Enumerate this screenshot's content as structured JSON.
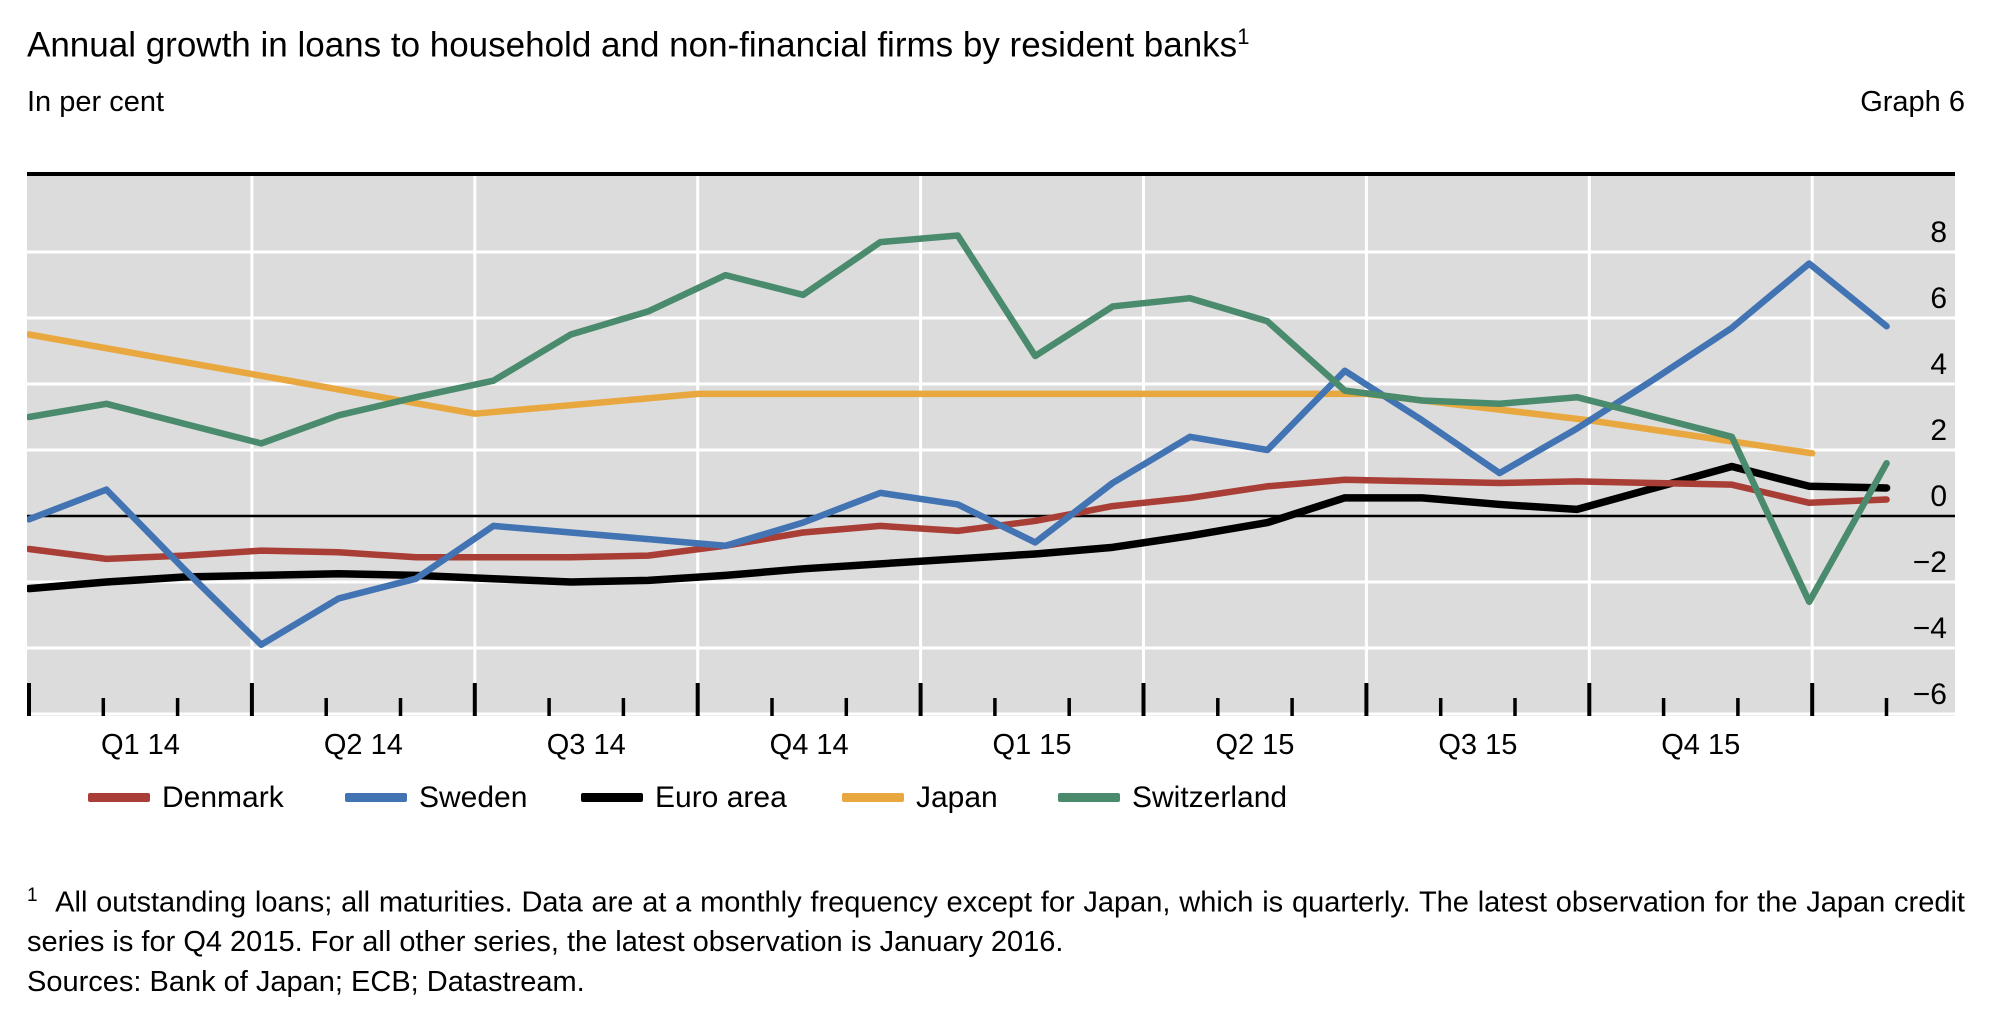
{
  "header": {
    "title": "Annual growth in loans to household and non-financial firms by resident banks",
    "title_footnote_marker": "1",
    "subtitle_left": "In per cent",
    "subtitle_right": "Graph 6"
  },
  "chart_data": {
    "type": "line",
    "title": "Annual growth in loans to household and non-financial firms by resident banks",
    "ylabel": "In per cent",
    "ylim": [
      -6.1,
      10.3
    ],
    "yticks": [
      8,
      6,
      4,
      2,
      0,
      -2,
      -4,
      -6
    ],
    "ytick_labels": [
      "8",
      "6",
      "4",
      "2",
      "0",
      "−2",
      "−4",
      "−6"
    ],
    "zero_line": true,
    "grid": true,
    "legend_position": "bottom",
    "plot_background": "#dcdcdc",
    "gridline_color": "#ffffff",
    "months": [
      "Jan 2014",
      "Feb 2014",
      "Mar 2014",
      "Apr 2014",
      "May 2014",
      "Jun 2014",
      "Jul 2014",
      "Aug 2014",
      "Sep 2014",
      "Oct 2014",
      "Nov 2014",
      "Dec 2014",
      "Jan 2015",
      "Feb 2015",
      "Mar 2015",
      "Apr 2015",
      "May 2015",
      "Jun 2015",
      "Jul 2015",
      "Aug 2015",
      "Sep 2015",
      "Oct 2015",
      "Nov 2015",
      "Dec 2015",
      "Jan 2016"
    ],
    "quarter_tick_labels": [
      "Q1 14",
      "Q2 14",
      "Q3 14",
      "Q4 14",
      "Q1 15",
      "Q2 15",
      "Q3 15",
      "Q4 15"
    ],
    "series": [
      {
        "name": "Euro area",
        "color": "#000000",
        "freq": "monthly",
        "width": 7.5,
        "values": [
          -2.2,
          -2.0,
          -1.85,
          -1.8,
          -1.75,
          -1.8,
          -1.9,
          -2.0,
          -1.95,
          -1.8,
          -1.6,
          -1.45,
          -1.3,
          -1.15,
          -0.95,
          -0.6,
          -0.2,
          0.55,
          0.55,
          0.35,
          0.2,
          0.85,
          1.5,
          0.9,
          0.85
        ]
      },
      {
        "name": "Denmark",
        "color": "#a93e36",
        "freq": "monthly",
        "width": 6.5,
        "values": [
          -1.0,
          -1.3,
          -1.2,
          -1.05,
          -1.1,
          -1.25,
          -1.25,
          -1.25,
          -1.2,
          -0.9,
          -0.5,
          -0.3,
          -0.45,
          -0.15,
          0.3,
          0.55,
          0.9,
          1.1,
          1.05,
          1.0,
          1.05,
          1.0,
          0.95,
          0.4,
          0.5
        ]
      },
      {
        "name": "Japan",
        "color": "#e9a83f",
        "freq": "quarterly",
        "width": 6.5,
        "quarters": [
          "start (Q4 2013 level)",
          "Q1 2014",
          "Q2 2014",
          "Q3 2014",
          "Q4 2014",
          "Q1 2015",
          "Q2 2015",
          "Q3 2015",
          "Q4 2015"
        ],
        "values": [
          5.5,
          4.3,
          3.1,
          3.7,
          3.7,
          3.7,
          3.7,
          2.9,
          1.9
        ]
      },
      {
        "name": "Sweden",
        "color": "#4273b3",
        "freq": "monthly",
        "width": 6.5,
        "values": [
          -0.1,
          0.8,
          -1.6,
          -3.9,
          -2.5,
          -1.9,
          -0.3,
          -0.5,
          -0.7,
          -0.9,
          -0.2,
          0.7,
          0.35,
          -0.8,
          1.0,
          2.4,
          2.0,
          4.4,
          2.9,
          1.3,
          2.65,
          4.15,
          5.7,
          7.65,
          5.75
        ]
      },
      {
        "name": "Switzerland",
        "color": "#4a8a6d",
        "freq": "monthly",
        "width": 6.5,
        "values": [
          3.0,
          3.4,
          2.8,
          2.2,
          3.05,
          3.6,
          4.1,
          5.5,
          6.2,
          7.3,
          6.7,
          8.3,
          8.5,
          4.85,
          6.35,
          6.6,
          5.9,
          3.8,
          3.5,
          3.4,
          3.6,
          3.0,
          2.4,
          -2.6,
          1.6
        ]
      }
    ]
  },
  "legend": [
    {
      "label": "Denmark",
      "color": "#a93e36"
    },
    {
      "label": "Sweden",
      "color": "#4273b3"
    },
    {
      "label": "Euro area",
      "color": "#000000"
    },
    {
      "label": "Japan",
      "color": "#e9a83f"
    },
    {
      "label": "Switzerland",
      "color": "#4a8a6d"
    }
  ],
  "footnote": {
    "marker": "1",
    "text": "All outstanding loans; all maturities. Data are at a monthly frequency except for Japan, which is quarterly. The latest observation for the Japan credit series is for Q4 2015. For all other series, the latest observation is January 2016."
  },
  "sources": "Sources: Bank of Japan; ECB; Datastream."
}
